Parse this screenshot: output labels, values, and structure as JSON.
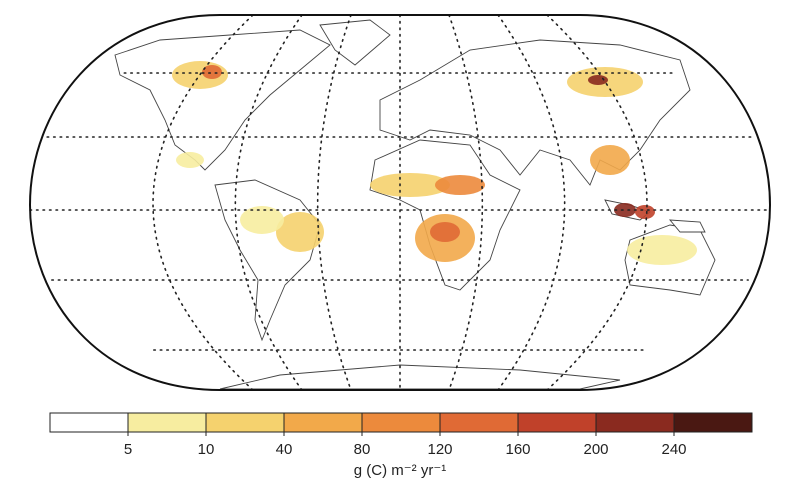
{
  "legend": {
    "ticks": [
      5,
      10,
      40,
      80,
      120,
      160,
      200,
      240
    ],
    "colors": [
      "#ffffff",
      "#f7eda0",
      "#f5d26e",
      "#f2a94a",
      "#ec8a3c",
      "#e06a35",
      "#c0412a",
      "#8a2a1f",
      "#4a1812"
    ],
    "unit": "g (C) m⁻² yr⁻¹"
  }
}
